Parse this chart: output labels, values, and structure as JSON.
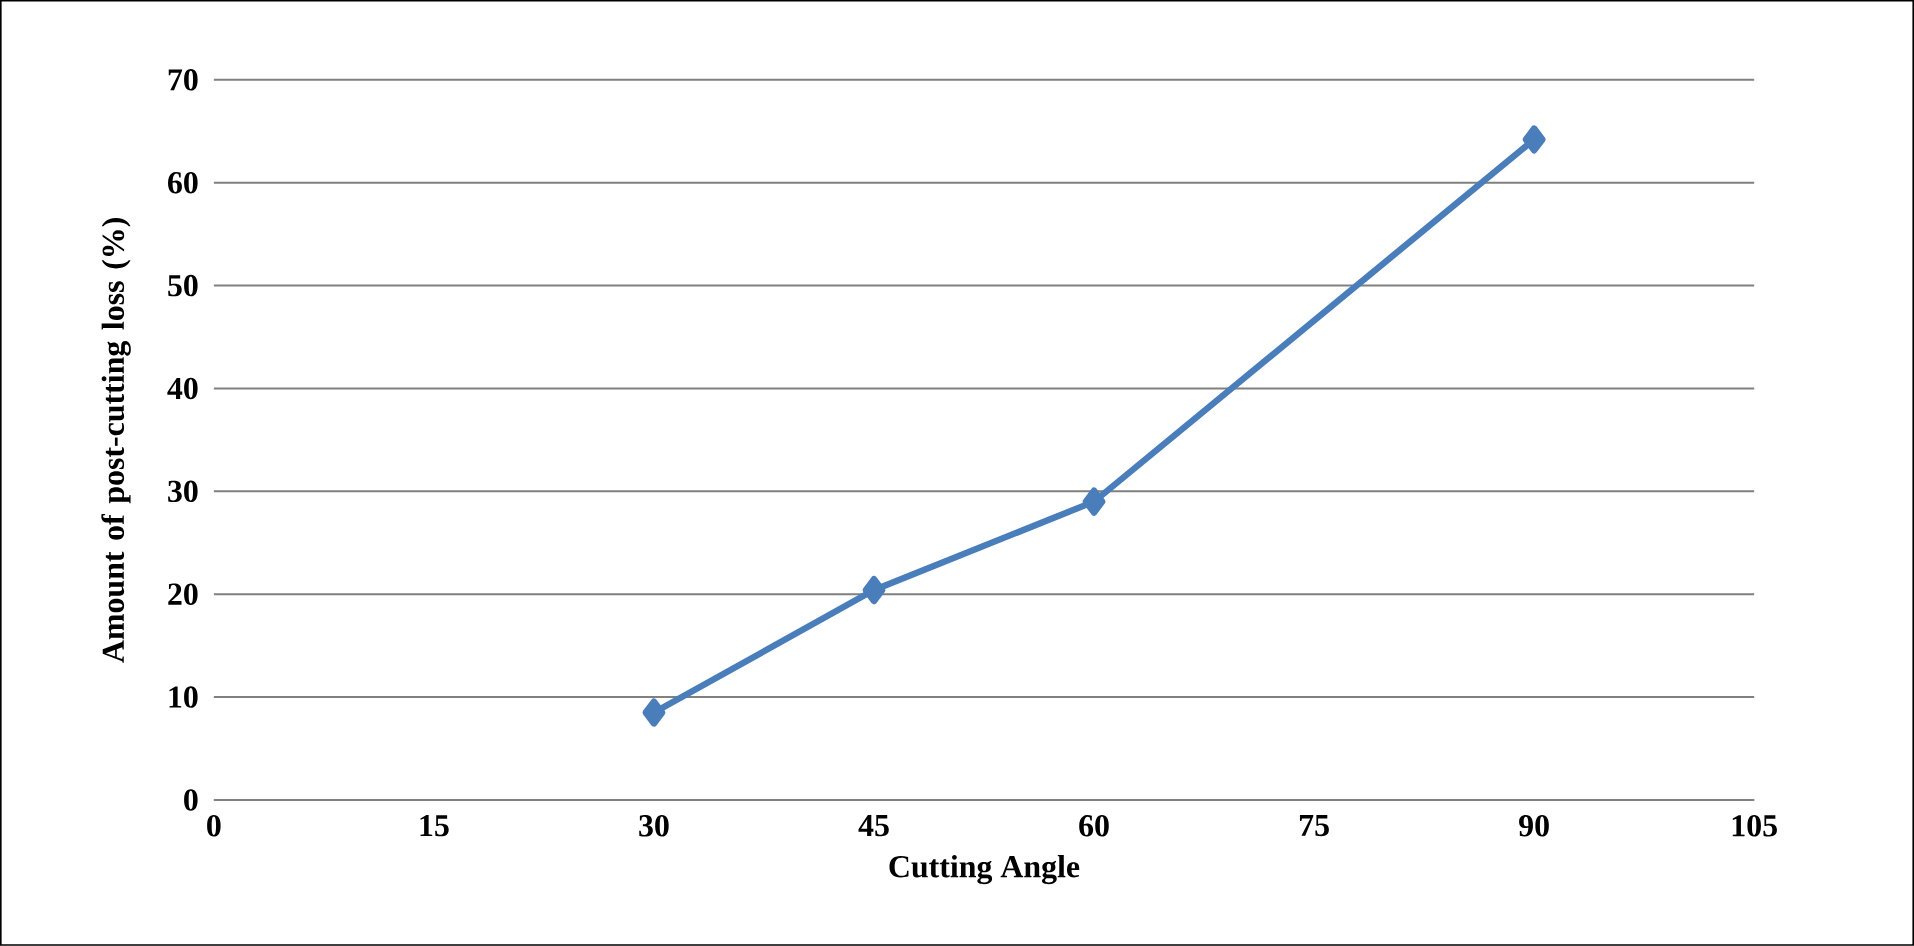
{
  "chart_data": {
    "type": "line",
    "xlabel": "Cutting Angle",
    "ylabel": "Amount of post-cutting loss (%)",
    "x": [
      30,
      45,
      60,
      90
    ],
    "series": [
      {
        "color": "#4a7ebb",
        "values": [
          8.5,
          20.4,
          29.0,
          64.2
        ]
      }
    ],
    "xlim": [
      0,
      105
    ],
    "xticks": [
      0,
      15,
      30,
      45,
      60,
      75,
      90,
      105
    ],
    "ylim": [
      0,
      70
    ],
    "yticks": [
      0,
      10,
      20,
      30,
      40,
      50,
      60,
      70
    ],
    "grid": "y",
    "marker": "diamond",
    "line_style": "solid"
  }
}
